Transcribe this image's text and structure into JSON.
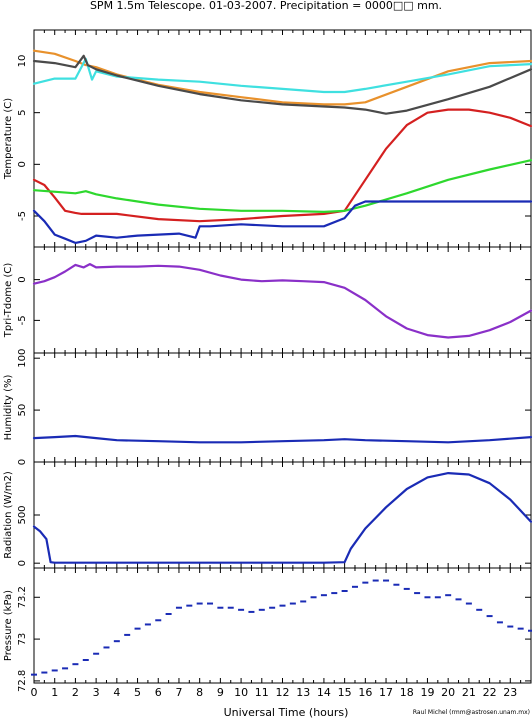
{
  "title": "SPM 1.5m Telescope. 01-03-2007. Precipitation = 0000□□ mm.",
  "credit": "Raul Michel (rmm@astrosen.unam.mx)",
  "colors": {
    "axis": "#000000",
    "orange": "#e8912c",
    "cyan": "#3fe0e0",
    "dark_gray": "#4a4a4a",
    "gray_scatter": "#808080",
    "red": "#d42020",
    "green": "#2ed82e",
    "blue": "#1a2bb5",
    "purple": "#8a30c8"
  },
  "chart_data": [
    {
      "type": "line",
      "panel": "temperature",
      "ylabel": "Temperature (C)",
      "xlim": [
        0,
        24
      ],
      "ylim": [
        -8,
        13
      ],
      "yticks": [
        -5,
        0,
        5,
        10
      ],
      "series": [
        {
          "color": "orange",
          "x": [
            0,
            1,
            2,
            2.5,
            3,
            4,
            6,
            8,
            10,
            12,
            14,
            15,
            16,
            18,
            20,
            22,
            24
          ],
          "y": [
            11,
            10.7,
            10,
            9.6,
            9.4,
            8.7,
            7.7,
            7,
            6.5,
            6,
            5.8,
            5.8,
            6,
            7.5,
            9,
            9.8,
            10
          ]
        },
        {
          "color": "cyan",
          "x": [
            0,
            1,
            2,
            2.5,
            2.8,
            3,
            4,
            6,
            8,
            10,
            12,
            14,
            15,
            16,
            18,
            20,
            22,
            24
          ],
          "y": [
            7.8,
            8.3,
            8.3,
            10.2,
            8.2,
            9,
            8.5,
            8.2,
            8,
            7.6,
            7.3,
            7,
            7,
            7.3,
            8,
            8.7,
            9.5,
            9.7
          ]
        },
        {
          "color": "dark_gray",
          "x": [
            0,
            1,
            2,
            2.4,
            2.6,
            3,
            4,
            6,
            8,
            10,
            12,
            14,
            15,
            16,
            17,
            18,
            20,
            22,
            24
          ],
          "y": [
            10,
            9.8,
            9.4,
            10.5,
            9.6,
            9.2,
            8.6,
            7.6,
            6.8,
            6.2,
            5.8,
            5.6,
            5.5,
            5.3,
            4.9,
            5.2,
            6.3,
            7.5,
            9.2
          ]
        },
        {
          "color": "red",
          "x": [
            0,
            0.5,
            1,
            1.5,
            2,
            2.3,
            2.7,
            3,
            4,
            6,
            8,
            10,
            12,
            14,
            15,
            16,
            17,
            18,
            19,
            20,
            21,
            22,
            23,
            24
          ],
          "y": [
            -1.5,
            -2,
            -3.2,
            -4.5,
            -4.7,
            -4.8,
            -4.8,
            -4.8,
            -4.8,
            -5.3,
            -5.5,
            -5.3,
            -5,
            -4.8,
            -4.5,
            -1.5,
            1.5,
            3.8,
            5,
            5.3,
            5.3,
            5,
            4.5,
            3.7
          ]
        },
        {
          "color": "green",
          "x": [
            0,
            2,
            2.5,
            3,
            4,
            6,
            8,
            10,
            12,
            14,
            15,
            16,
            18,
            20,
            22,
            24
          ],
          "y": [
            -2.5,
            -2.8,
            -2.6,
            -2.9,
            -3.3,
            -3.9,
            -4.3,
            -4.5,
            -4.5,
            -4.6,
            -4.5,
            -4,
            -2.8,
            -1.5,
            -0.5,
            0.4
          ]
        },
        {
          "color": "blue",
          "x": [
            0,
            0.5,
            1,
            1.5,
            2,
            2.5,
            3,
            4,
            5,
            6,
            7,
            7.8,
            8,
            8.5,
            10,
            12,
            14,
            15,
            15.5,
            16,
            18,
            20,
            22,
            24
          ],
          "y": [
            -4.5,
            -5.5,
            -6.8,
            -7.2,
            -7.6,
            -7.4,
            -6.9,
            -7.1,
            -6.9,
            -6.8,
            -6.7,
            -7.1,
            -6,
            -6,
            -5.8,
            -6,
            -6,
            -5.2,
            -4,
            -3.6,
            -3.6,
            -3.6,
            -3.6,
            -3.6
          ]
        }
      ]
    },
    {
      "type": "line",
      "panel": "tdiff",
      "ylabel": "Tpri-Tdome (C)",
      "xlim": [
        0,
        24
      ],
      "ylim": [
        -9,
        4
      ],
      "yticks": [
        -5,
        0
      ],
      "series": [
        {
          "color": "purple",
          "x": [
            0,
            0.5,
            1,
            1.5,
            2,
            2.4,
            2.7,
            3,
            4,
            5,
            6,
            7,
            8,
            9,
            10,
            11,
            12,
            13,
            14,
            15,
            16,
            17,
            18,
            19,
            20,
            21,
            22,
            23,
            24
          ],
          "y": [
            -0.5,
            -0.2,
            0.3,
            1,
            1.8,
            1.5,
            1.9,
            1.5,
            1.6,
            1.6,
            1.7,
            1.6,
            1.2,
            0.5,
            0,
            -0.2,
            -0.1,
            -0.2,
            -0.3,
            -1,
            -2.5,
            -4.5,
            -6,
            -6.8,
            -7.1,
            -6.9,
            -6.2,
            -5.2,
            -3.8
          ]
        }
      ]
    },
    {
      "type": "line",
      "panel": "humidity",
      "ylabel": "Humidity (%)",
      "xlim": [
        0,
        24
      ],
      "ylim": [
        0,
        105
      ],
      "yticks": [
        0,
        50,
        100
      ],
      "series": [
        {
          "color": "blue",
          "x": [
            0,
            1,
            2,
            3,
            4,
            6,
            8,
            10,
            12,
            14,
            15,
            16,
            18,
            20,
            22,
            24
          ],
          "y": [
            23,
            24,
            25,
            23,
            21,
            20,
            19,
            19,
            20,
            21,
            22,
            21,
            20,
            19,
            21,
            24
          ]
        }
      ]
    },
    {
      "type": "line",
      "panel": "radiation",
      "ylabel": "Radiation (W/m2)",
      "xlim": [
        0,
        24
      ],
      "ylim": [
        -50,
        1050
      ],
      "yticks": [
        0,
        500
      ],
      "series": [
        {
          "color": "blue",
          "x": [
            0,
            0.3,
            0.6,
            0.8,
            1,
            2,
            4,
            6,
            8,
            10,
            12,
            14,
            15,
            15.3,
            16,
            17,
            18,
            19,
            20,
            21,
            22,
            23,
            24
          ],
          "y": [
            380,
            330,
            250,
            10,
            5,
            5,
            5,
            5,
            5,
            5,
            5,
            5,
            10,
            150,
            360,
            580,
            770,
            890,
            935,
            920,
            830,
            660,
            430
          ]
        }
      ]
    },
    {
      "type": "scatter",
      "panel": "pressure",
      "ylabel": "Pressure (kPa)",
      "xlabel": "Universal Time (hours)",
      "xlim": [
        0,
        24
      ],
      "ylim": [
        72.79,
        73.34
      ],
      "yticks": [
        72.8,
        73,
        73.2
      ],
      "xticks": [
        0,
        1,
        2,
        3,
        4,
        5,
        6,
        7,
        8,
        9,
        10,
        11,
        12,
        13,
        14,
        15,
        16,
        17,
        18,
        19,
        20,
        21,
        22,
        23
      ],
      "series": [
        {
          "color": "blue",
          "x": [
            0,
            0.5,
            1,
            1.5,
            2,
            2.5,
            3,
            3.5,
            4,
            4.5,
            5,
            5.5,
            6,
            6.5,
            7,
            7.5,
            8,
            8.5,
            9,
            9.5,
            10,
            10.5,
            11,
            11.5,
            12,
            12.5,
            13,
            13.5,
            14,
            14.5,
            15,
            15.5,
            16,
            16.5,
            17,
            17.5,
            18,
            18.5,
            19,
            19.5,
            20,
            20.5,
            21,
            21.5,
            22,
            22.5,
            23,
            23.5,
            24
          ],
          "y": [
            72.83,
            72.84,
            72.85,
            72.86,
            72.88,
            72.9,
            72.93,
            72.96,
            72.99,
            73.02,
            73.05,
            73.07,
            73.09,
            73.12,
            73.15,
            73.16,
            73.17,
            73.17,
            73.15,
            73.15,
            73.14,
            73.13,
            73.14,
            73.15,
            73.16,
            73.17,
            73.18,
            73.2,
            73.21,
            73.22,
            73.23,
            73.25,
            73.27,
            73.28,
            73.28,
            73.26,
            73.24,
            73.22,
            73.2,
            73.2,
            73.21,
            73.19,
            73.17,
            73.14,
            73.11,
            73.08,
            73.06,
            73.05,
            73.04
          ]
        }
      ]
    }
  ]
}
